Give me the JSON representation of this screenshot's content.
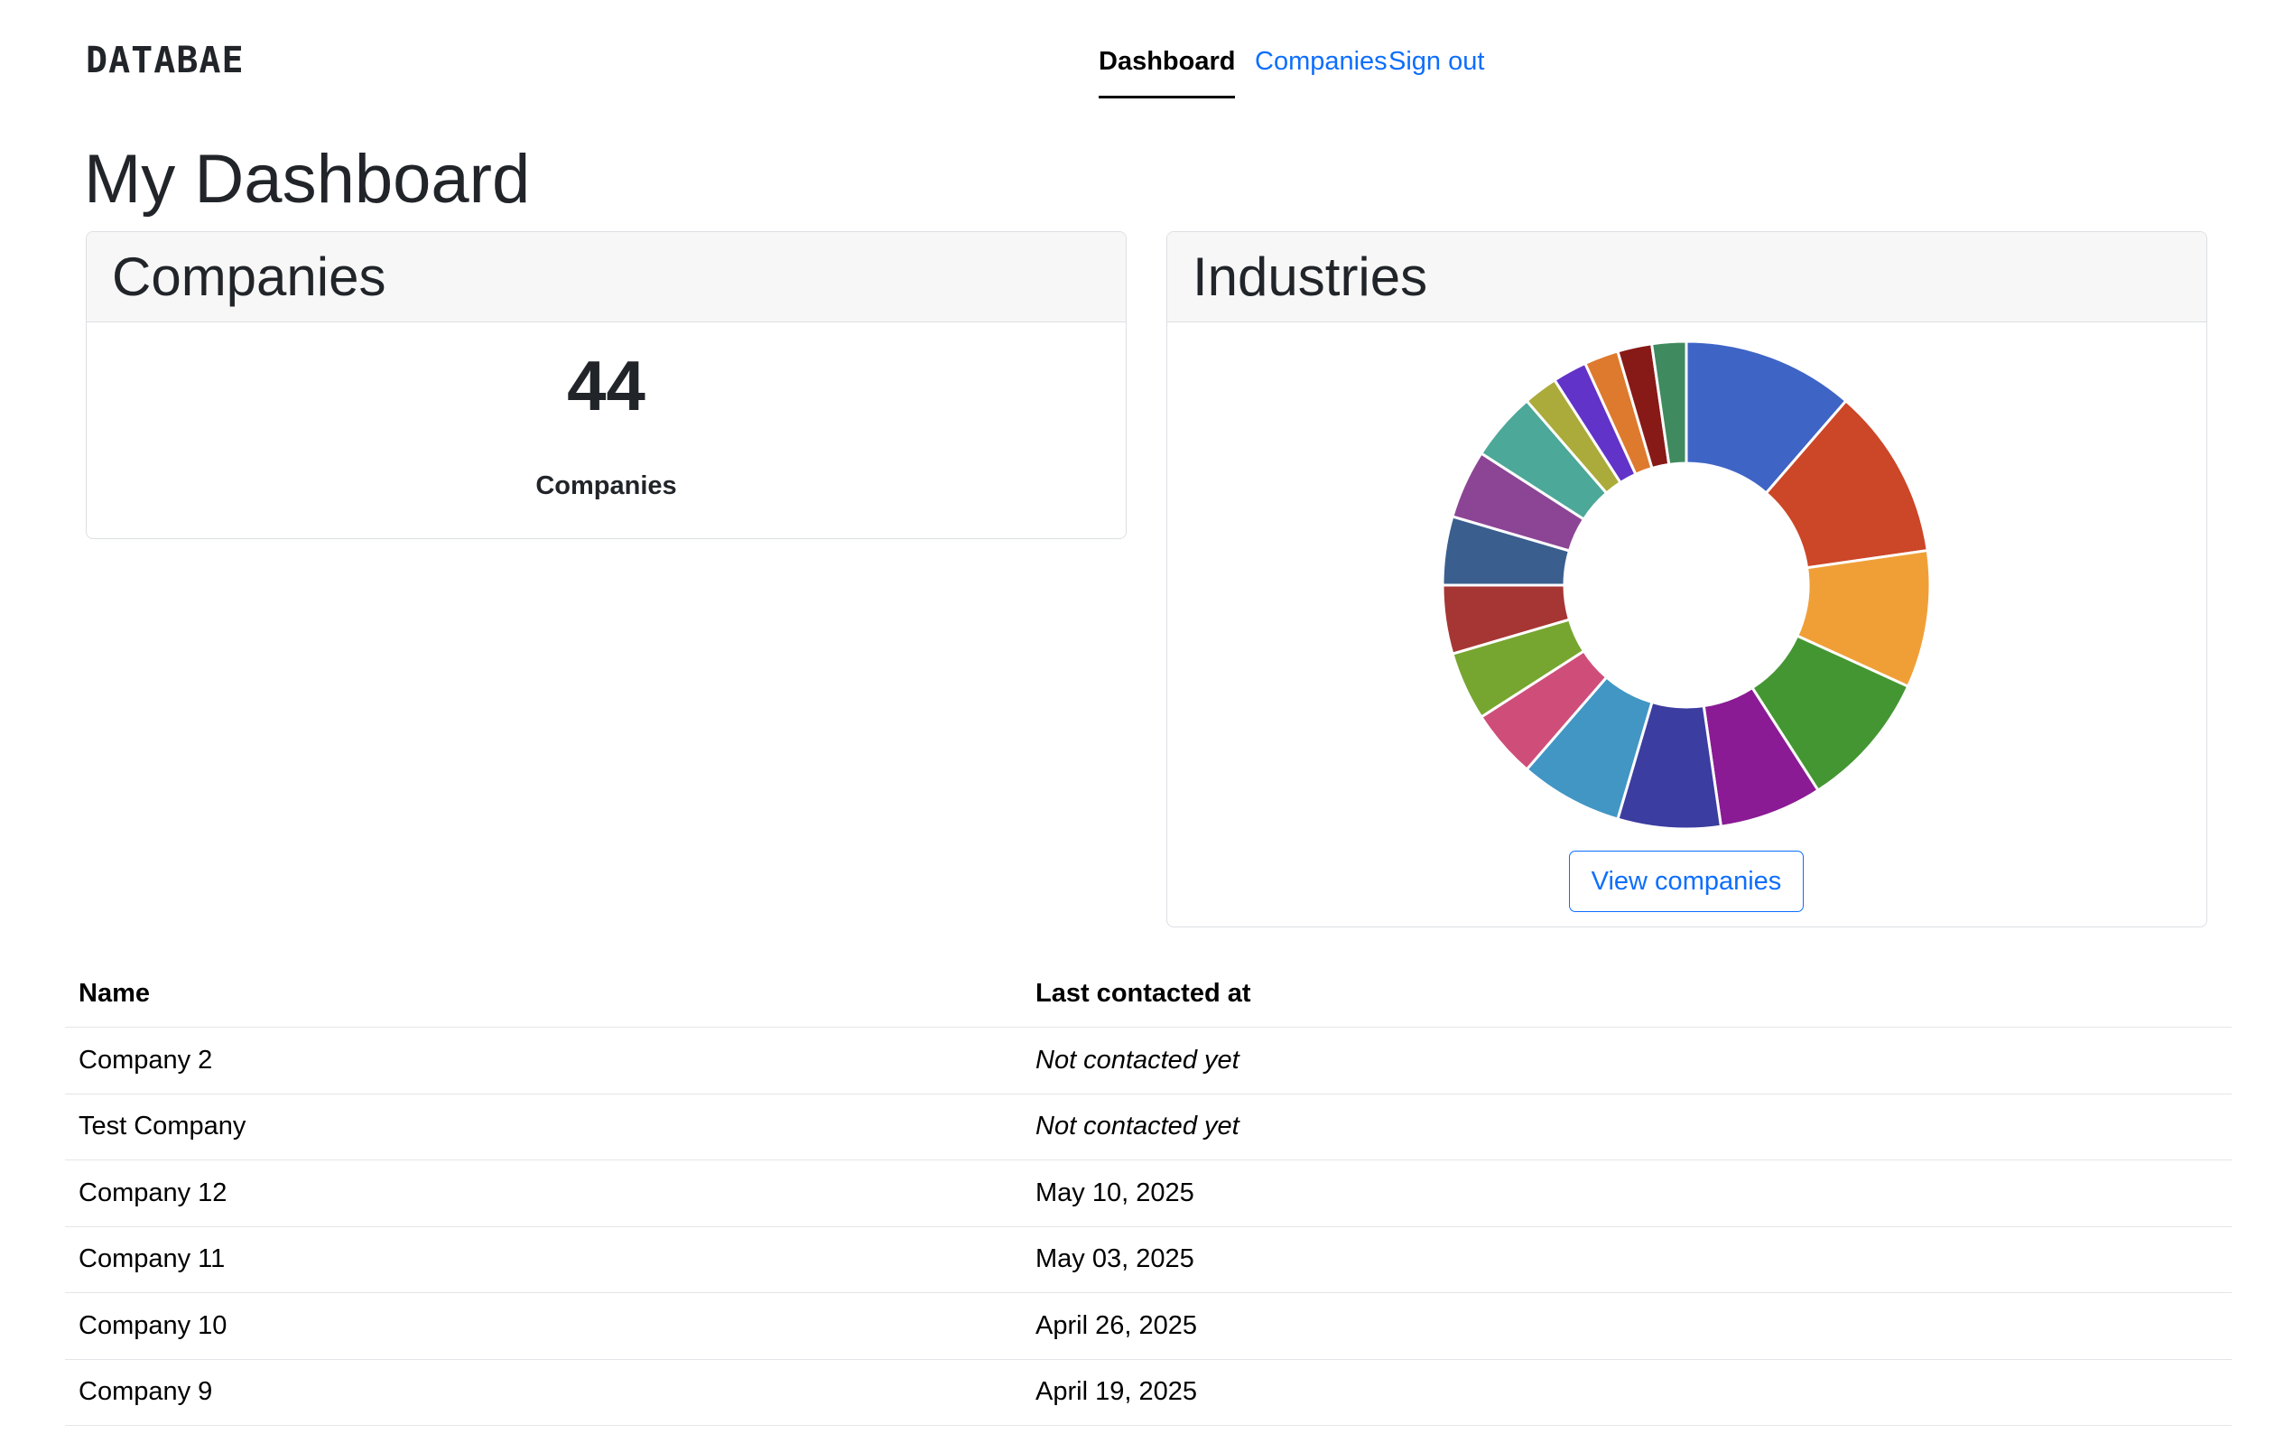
{
  "brand": "DATABAE",
  "nav": {
    "items": [
      {
        "label": "Dashboard",
        "active": true
      },
      {
        "label": "Companies",
        "active": false
      },
      {
        "label": "Sign out",
        "active": false
      }
    ]
  },
  "page_title": "My Dashboard",
  "companies_card": {
    "title": "Companies",
    "count": "44",
    "count_label": "Companies"
  },
  "industries_card": {
    "title": "Industries",
    "button_label": "View companies"
  },
  "chart_data": {
    "type": "pie",
    "donut": true,
    "legend": "none",
    "slices": [
      {
        "value": 5,
        "color": "#3e64c6"
      },
      {
        "value": 5,
        "color": "#cc4628"
      },
      {
        "value": 4,
        "color": "#f09f37"
      },
      {
        "value": 4,
        "color": "#449632"
      },
      {
        "value": 3,
        "color": "#8a1b94"
      },
      {
        "value": 3,
        "color": "#3c3da0"
      },
      {
        "value": 3,
        "color": "#4196c4"
      },
      {
        "value": 2,
        "color": "#cf4e79"
      },
      {
        "value": 2,
        "color": "#77a630"
      },
      {
        "value": 2,
        "color": "#a53634"
      },
      {
        "value": 2,
        "color": "#3a5f8e"
      },
      {
        "value": 2,
        "color": "#8c4595"
      },
      {
        "value": 2,
        "color": "#4ca898"
      },
      {
        "value": 1,
        "color": "#abab3b"
      },
      {
        "value": 1,
        "color": "#6233c8"
      },
      {
        "value": 1,
        "color": "#de7a2e"
      },
      {
        "value": 1,
        "color": "#871917"
      },
      {
        "value": 1,
        "color": "#3f8a5e"
      }
    ]
  },
  "table": {
    "headers": {
      "name": "Name",
      "last_contacted": "Last contacted at"
    },
    "rows": [
      {
        "name": "Company 2",
        "last_contacted": "Not contacted yet",
        "contacted": false
      },
      {
        "name": "Test Company",
        "last_contacted": "Not contacted yet",
        "contacted": false
      },
      {
        "name": "Company 12",
        "last_contacted": "May 10, 2025",
        "contacted": true
      },
      {
        "name": "Company 11",
        "last_contacted": "May 03, 2025",
        "contacted": true
      },
      {
        "name": "Company 10",
        "last_contacted": "April 26, 2025",
        "contacted": true
      },
      {
        "name": "Company 9",
        "last_contacted": "April 19, 2025",
        "contacted": true
      }
    ]
  },
  "colors": {
    "link": "#0d6efd",
    "not_contacted": "#d1303f"
  }
}
